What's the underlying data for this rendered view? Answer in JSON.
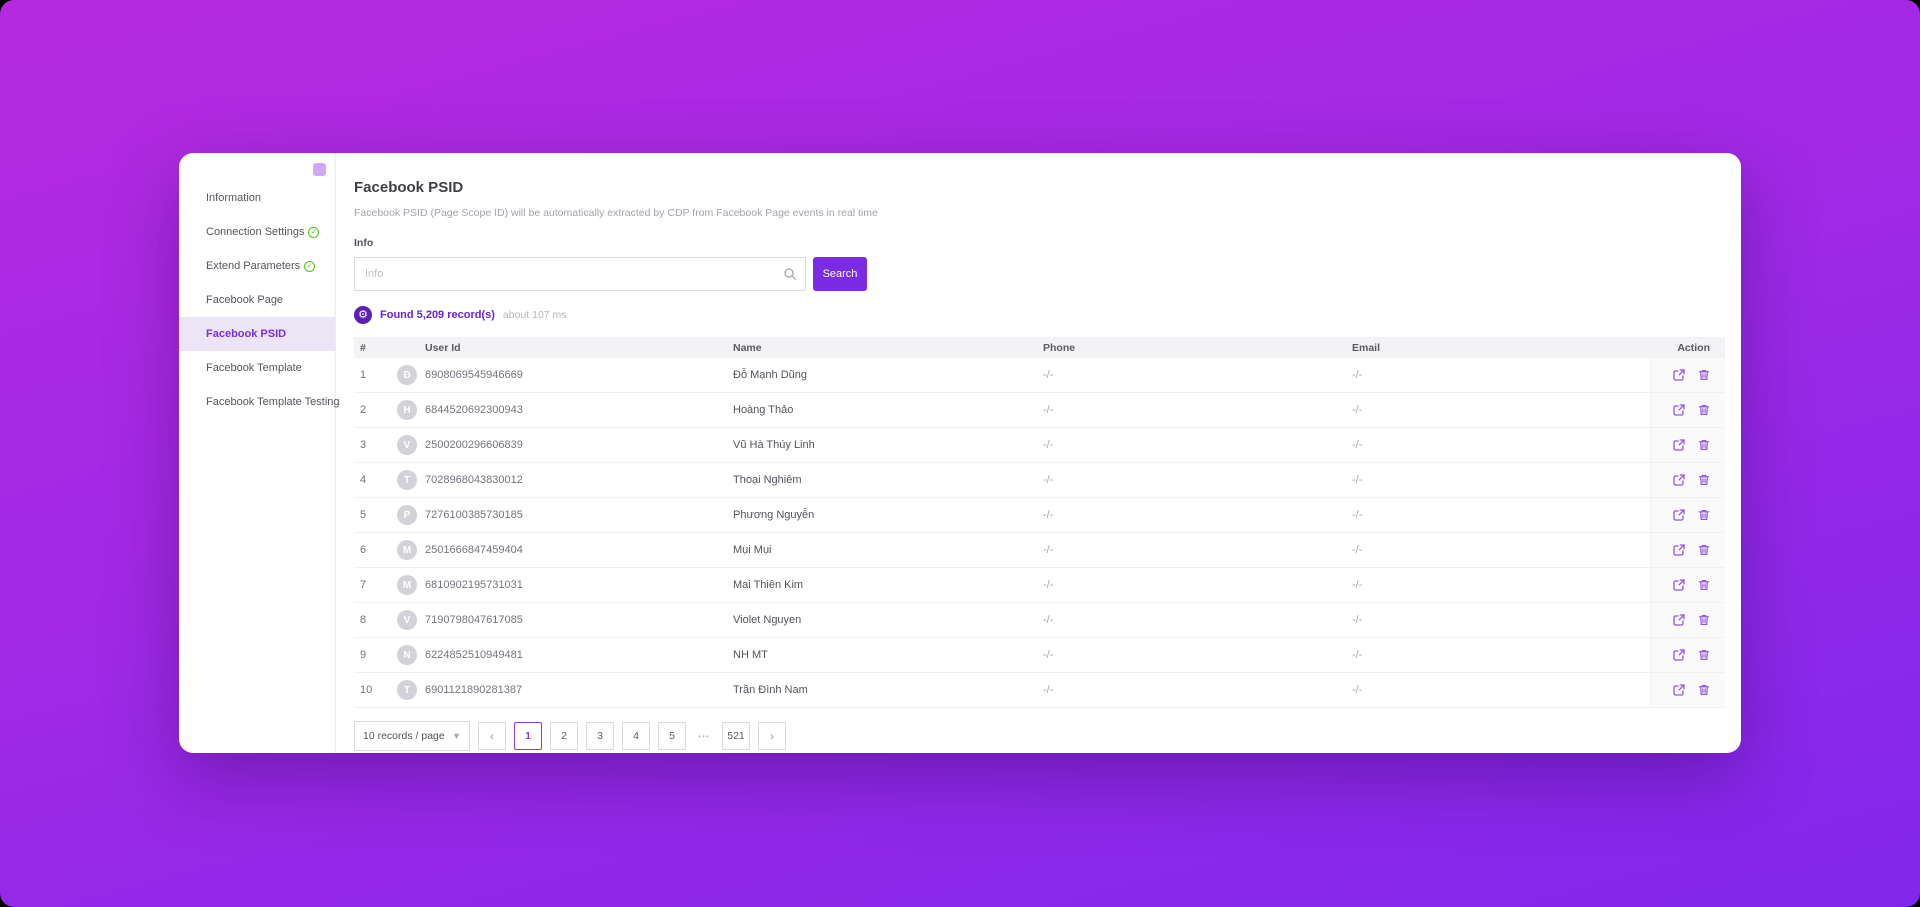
{
  "colors": {
    "accent": "#7b2ce2",
    "accent_dark": "#5b21b6",
    "active_page_border": "#8b3dde",
    "success_green": "#52c41a"
  },
  "sidebar": {
    "items": [
      {
        "label": "Information",
        "connected": false,
        "active": false
      },
      {
        "label": "Connection Settings",
        "connected": true,
        "active": false
      },
      {
        "label": "Extend Parameters",
        "connected": true,
        "active": false
      },
      {
        "label": "Facebook Page",
        "connected": false,
        "active": false
      },
      {
        "label": "Facebook PSID",
        "connected": false,
        "active": true
      },
      {
        "label": "Facebook Template",
        "connected": false,
        "active": false
      },
      {
        "label": "Facebook Template Testing",
        "connected": false,
        "active": false
      }
    ]
  },
  "header": {
    "title": "Facebook PSID",
    "subtitle": "Facebook PSID (Page Scope ID) will be automatically extracted by CDP from Facebook Page events in real time"
  },
  "search": {
    "label": "Info",
    "placeholder": "Info",
    "value": "",
    "button_label": "Search"
  },
  "results": {
    "found_text": "Found 5,209 record(s)",
    "duration_text": "about 107 ms"
  },
  "table": {
    "headers": [
      "#",
      "User Id",
      "Name",
      "Phone",
      "Email",
      "Action"
    ],
    "rows": [
      {
        "index": "1",
        "avatar_letter": "Đ",
        "user_id": "6908069545946669",
        "name": "Đỗ Mạnh Dũng",
        "phone": "-/-",
        "email": "-/-"
      },
      {
        "index": "2",
        "avatar_letter": "H",
        "user_id": "6844520692300943",
        "name": "Hoàng Thảo",
        "phone": "-/-",
        "email": "-/-"
      },
      {
        "index": "3",
        "avatar_letter": "V",
        "user_id": "2500200296606839",
        "name": "Vũ Hà Thúy Linh",
        "phone": "-/-",
        "email": "-/-"
      },
      {
        "index": "4",
        "avatar_letter": "T",
        "user_id": "7028968043830012",
        "name": "Thoại Nghiêm",
        "phone": "-/-",
        "email": "-/-"
      },
      {
        "index": "5",
        "avatar_letter": "P",
        "user_id": "7276100385730185",
        "name": "Phương Nguyễn",
        "phone": "-/-",
        "email": "-/-"
      },
      {
        "index": "6",
        "avatar_letter": "M",
        "user_id": "2501666847459404",
        "name": "Mụi Mụi",
        "phone": "-/-",
        "email": "-/-"
      },
      {
        "index": "7",
        "avatar_letter": "M",
        "user_id": "6810902195731031",
        "name": "Mai Thiên Kim",
        "phone": "-/-",
        "email": "-/-"
      },
      {
        "index": "8",
        "avatar_letter": "V",
        "user_id": "7190798047617085",
        "name": "Violet Nguyen",
        "phone": "-/-",
        "email": "-/-"
      },
      {
        "index": "9",
        "avatar_letter": "N",
        "user_id": "6224852510949481",
        "name": "NH MT",
        "phone": "-/-",
        "email": "-/-"
      },
      {
        "index": "10",
        "avatar_letter": "T",
        "user_id": "6901121890281387",
        "name": "Trần Đình Nam",
        "phone": "-/-",
        "email": "-/-"
      }
    ]
  },
  "pagination": {
    "page_size_label": "10 records / page",
    "prev_label": "‹",
    "next_label": "›",
    "pages": [
      "1",
      "2",
      "3",
      "4",
      "5"
    ],
    "active_page": "1",
    "ellipsis_label": "•••",
    "last_page_label": "521"
  }
}
